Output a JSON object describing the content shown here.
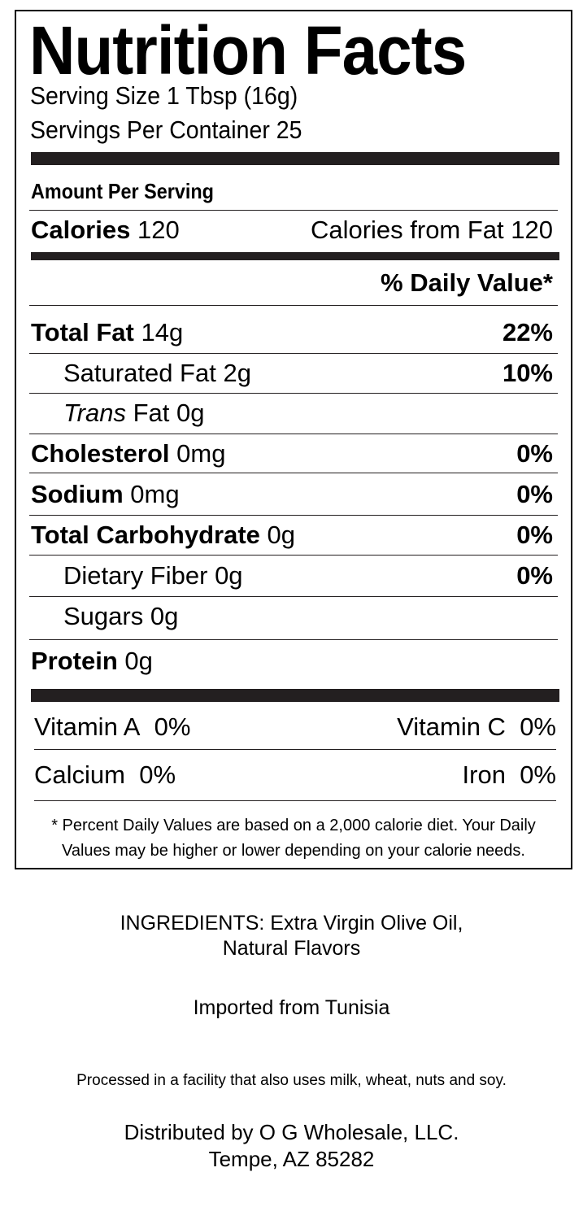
{
  "label": {
    "title": "Nutrition Facts",
    "serving_size": "Serving Size 1 Tbsp (16g)",
    "servings_per_container": "Servings Per Container 25",
    "amount_per_serving": "Amount Per Serving",
    "calories_label": "Calories",
    "calories_value": "120",
    "calories_from_fat": "Calories from Fat 120",
    "daily_value_header": "% Daily Value*",
    "nutrients": [
      {
        "name": "Total Fat",
        "amount": "14g",
        "dv": "22%"
      },
      {
        "name": "Saturated Fat",
        "amount": "2g",
        "dv": "10%"
      },
      {
        "name": "Trans",
        "name_suffix": "Fat",
        "amount": "0g",
        "dv": ""
      },
      {
        "name": "Cholesterol",
        "amount": "0mg",
        "dv": "0%"
      },
      {
        "name": "Sodium",
        "amount": "0mg",
        "dv": "0%"
      },
      {
        "name": "Total Carbohydrate",
        "amount": "0g",
        "dv": "0%"
      },
      {
        "name": "Dietary Fiber",
        "amount": "0g",
        "dv": "0%"
      },
      {
        "name": "Sugars",
        "amount": "0g",
        "dv": ""
      },
      {
        "name": "Protein",
        "amount": "0g",
        "dv": ""
      }
    ],
    "vitamins": [
      {
        "name": "Vitamin A",
        "value": "0%"
      },
      {
        "name": "Vitamin C",
        "value": "0%"
      },
      {
        "name": "Calcium",
        "value": "0%"
      },
      {
        "name": "Iron",
        "value": "0%"
      }
    ],
    "footnote_line1": "* Percent Daily Values are based on a 2,000 calorie diet. Your Daily",
    "footnote_line2": "Values may be higher or lower depending on your calorie needs."
  },
  "info": {
    "ingredients_line1": "INGREDIENTS: Extra Virgin Olive Oil,",
    "ingredients_line2": "Natural Flavors",
    "origin": "Imported from Tunisia",
    "allergen": "Processed in a facility that also uses milk, wheat, nuts and soy.",
    "distributor_line1": "Distributed by O G Wholesale, LLC.",
    "distributor_line2": "Tempe, AZ 85282"
  }
}
